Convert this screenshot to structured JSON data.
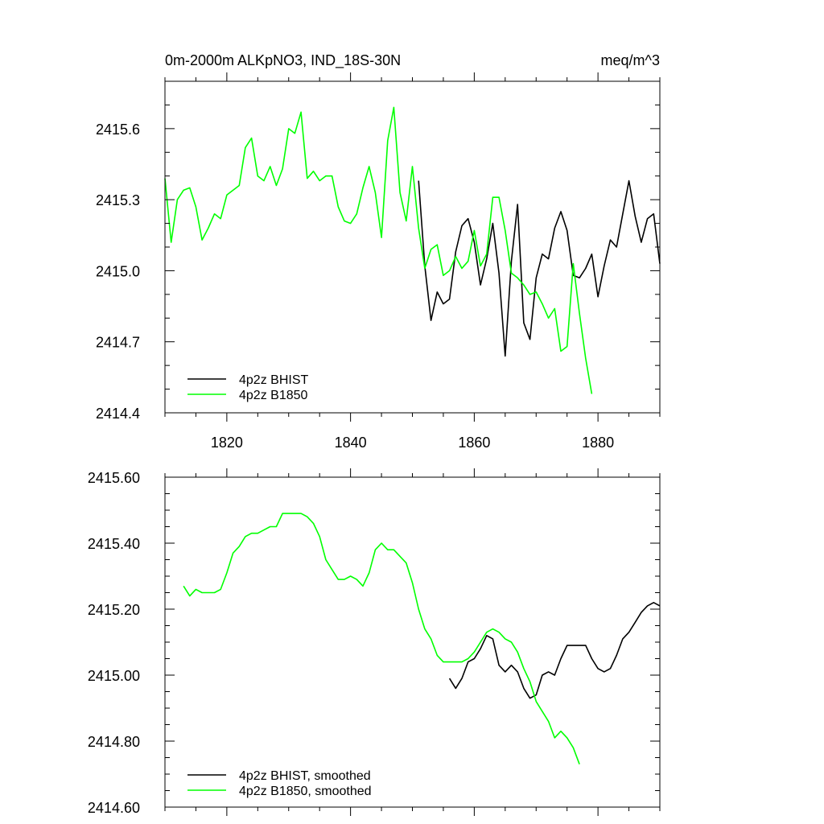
{
  "chart_data": [
    {
      "type": "line",
      "title": "0m-2000m ALKpNO3, IND_18S-30N",
      "units": "meq/m^3",
      "xlim": [
        1810,
        1890
      ],
      "ylim": [
        2414.4,
        2415.8
      ],
      "x_ticks": [
        1820,
        1840,
        1860,
        1880
      ],
      "y_ticks": [
        2414.4,
        2414.7,
        2415.0,
        2415.3,
        2415.6
      ],
      "y_tick_labels": [
        "2414.4",
        "2414.7",
        "2415.0",
        "2415.3",
        "2415.6"
      ],
      "legend_position": "bottom-left",
      "series": [
        {
          "name": "4p2z BHIST",
          "color": "#000000",
          "x_start": 1851,
          "values": [
            2415.38,
            2415.02,
            2414.79,
            2414.91,
            2414.86,
            2414.88,
            2415.08,
            2415.19,
            2415.22,
            2415.12,
            2414.94,
            2415.05,
            2415.2,
            2414.99,
            2414.64,
            2415.04,
            2415.28,
            2414.78,
            2414.71,
            2414.97,
            2415.07,
            2415.05,
            2415.18,
            2415.25,
            2415.17,
            2414.98,
            2414.97,
            2415.01,
            2415.07,
            2414.89,
            2415.02,
            2415.13,
            2415.1,
            2415.24,
            2415.38,
            2415.23,
            2415.12,
            2415.22,
            2415.24,
            2415.03
          ]
        },
        {
          "name": "4p2z B1850",
          "color": "#00ff00",
          "x_start": 1810,
          "values": [
            2415.39,
            2415.12,
            2415.3,
            2415.34,
            2415.35,
            2415.27,
            2415.13,
            2415.18,
            2415.24,
            2415.22,
            2415.32,
            2415.34,
            2415.36,
            2415.52,
            2415.56,
            2415.4,
            2415.38,
            2415.44,
            2415.36,
            2415.43,
            2415.6,
            2415.58,
            2415.67,
            2415.39,
            2415.42,
            2415.38,
            2415.4,
            2415.4,
            2415.27,
            2415.21,
            2415.2,
            2415.24,
            2415.35,
            2415.44,
            2415.33,
            2415.14,
            2415.55,
            2415.69,
            2415.33,
            2415.21,
            2415.44,
            2415.18,
            2415.01,
            2415.09,
            2415.11,
            2414.98,
            2415.0,
            2415.06,
            2415.01,
            2415.04,
            2415.17,
            2415.02,
            2415.07,
            2415.31,
            2415.31,
            2415.17,
            2414.99,
            2414.97,
            2414.94,
            2414.9,
            2414.91,
            2414.86,
            2414.8,
            2414.84,
            2414.66,
            2414.68,
            2415.03,
            2414.82,
            2414.63,
            2414.48
          ]
        }
      ]
    },
    {
      "type": "line",
      "xlim": [
        1810,
        1890
      ],
      "ylim": [
        2414.6,
        2415.6
      ],
      "x_ticks": [
        1820,
        1840,
        1860,
        1880
      ],
      "y_ticks": [
        2414.6,
        2414.8,
        2415.0,
        2415.2,
        2415.4,
        2415.6
      ],
      "y_tick_labels": [
        "2414.60",
        "2414.80",
        "2415.00",
        "2415.20",
        "2415.40",
        "2415.60"
      ],
      "legend_position": "bottom-left",
      "series": [
        {
          "name": "4p2z BHIST, smoothed",
          "color": "#000000",
          "x_start": 1856,
          "values": [
            2414.99,
            2414.96,
            2414.99,
            2415.04,
            2415.05,
            2415.08,
            2415.12,
            2415.11,
            2415.03,
            2415.01,
            2415.03,
            2415.01,
            2414.96,
            2414.93,
            2414.94,
            2415.0,
            2415.01,
            2415.0,
            2415.05,
            2415.09,
            2415.09,
            2415.09,
            2415.09,
            2415.05,
            2415.02,
            2415.01,
            2415.02,
            2415.06,
            2415.11,
            2415.13,
            2415.16,
            2415.19,
            2415.21,
            2415.22,
            2415.21
          ]
        },
        {
          "name": "4p2z B1850, smoothed",
          "color": "#00ff00",
          "x_start": 1813,
          "values": [
            2415.27,
            2415.24,
            2415.26,
            2415.25,
            2415.25,
            2415.25,
            2415.26,
            2415.31,
            2415.37,
            2415.39,
            2415.42,
            2415.43,
            2415.43,
            2415.44,
            2415.45,
            2415.45,
            2415.49,
            2415.49,
            2415.49,
            2415.49,
            2415.48,
            2415.46,
            2415.42,
            2415.35,
            2415.32,
            2415.29,
            2415.29,
            2415.3,
            2415.29,
            2415.27,
            2415.31,
            2415.38,
            2415.4,
            2415.38,
            2415.38,
            2415.36,
            2415.34,
            2415.28,
            2415.2,
            2415.14,
            2415.11,
            2415.06,
            2415.04,
            2415.04,
            2415.04,
            2415.04,
            2415.05,
            2415.07,
            2415.1,
            2415.13,
            2415.14,
            2415.13,
            2415.11,
            2415.1,
            2415.07,
            2415.02,
            2414.98,
            2414.92,
            2414.89,
            2414.86,
            2414.81,
            2414.83,
            2414.81,
            2414.78,
            2414.73
          ]
        }
      ]
    }
  ]
}
